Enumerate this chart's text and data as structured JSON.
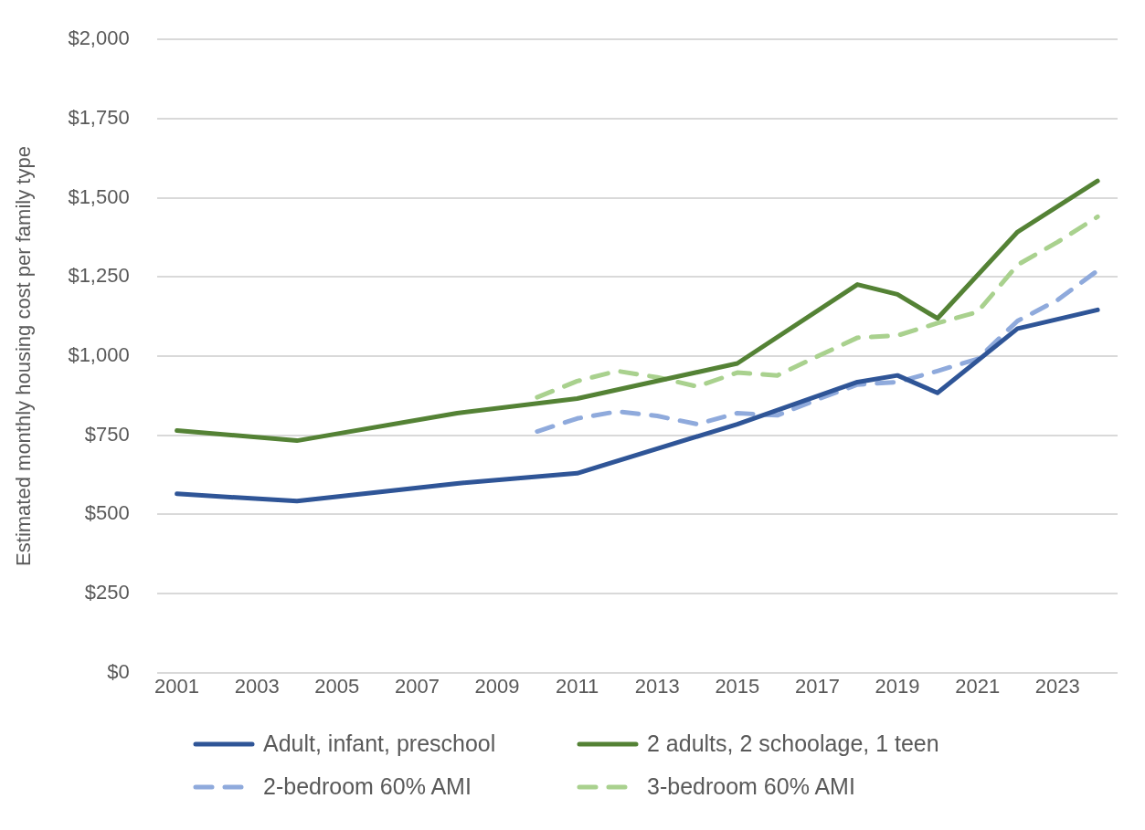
{
  "chart_data": {
    "type": "line",
    "ylabel": "Estimated monthly housing cost per family type",
    "xlim": [
      2000.5,
      2024.5
    ],
    "xticks": [
      2001,
      2003,
      2005,
      2007,
      2009,
      2011,
      2013,
      2015,
      2017,
      2019,
      2021,
      2023
    ],
    "ylim": [
      0,
      2000
    ],
    "yticks": [
      {
        "value": 0,
        "label": "$0"
      },
      {
        "value": 250,
        "label": "$250"
      },
      {
        "value": 500,
        "label": "$500"
      },
      {
        "value": 750,
        "label": "$750"
      },
      {
        "value": 1000,
        "label": "$1,000"
      },
      {
        "value": 1250,
        "label": "$1,250"
      },
      {
        "value": 1500,
        "label": "$1,500"
      },
      {
        "value": 1750,
        "label": "$1,750"
      },
      {
        "value": 2000,
        "label": "$2,000"
      }
    ],
    "grid": "y",
    "legend": "bottom",
    "marker": "none",
    "series": [
      {
        "name": "Adult, infant, preschool",
        "color": "#2f5597",
        "line_style": "solid",
        "x": [
          2001,
          2004,
          2008,
          2011,
          2015,
          2018,
          2019,
          2020,
          2022,
          2024
        ],
        "values": [
          565,
          542,
          598,
          630,
          785,
          918,
          939,
          884,
          1087,
          1146
        ]
      },
      {
        "name": "2 adults, 2 schoolage, 1 teen",
        "color": "#548235",
        "line_style": "solid",
        "x": [
          2001,
          2004,
          2008,
          2011,
          2015,
          2018,
          2019,
          2020,
          2022,
          2024
        ],
        "values": [
          765,
          733,
          820,
          866,
          977,
          1226,
          1195,
          1119,
          1392,
          1553
        ]
      },
      {
        "name": "2-bedroom 60% AMI",
        "color": "#8faadc",
        "line_style": "dashed",
        "x": [
          2010,
          2011,
          2012,
          2013,
          2014,
          2015,
          2016,
          2017,
          2018,
          2019,
          2020,
          2021,
          2022,
          2023,
          2024
        ],
        "values": [
          762,
          803,
          825,
          811,
          785,
          820,
          813,
          863,
          910,
          918,
          953,
          991,
          1111,
          1177,
          1270
        ]
      },
      {
        "name": "3-bedroom 60% AMI",
        "color": "#a9d18e",
        "line_style": "dashed",
        "x": [
          2010,
          2011,
          2012,
          2013,
          2014,
          2015,
          2016,
          2017,
          2018,
          2019,
          2020,
          2021,
          2022,
          2023,
          2024
        ],
        "values": [
          870,
          921,
          953,
          933,
          904,
          948,
          939,
          999,
          1058,
          1065,
          1104,
          1139,
          1288,
          1360,
          1440
        ]
      }
    ]
  }
}
